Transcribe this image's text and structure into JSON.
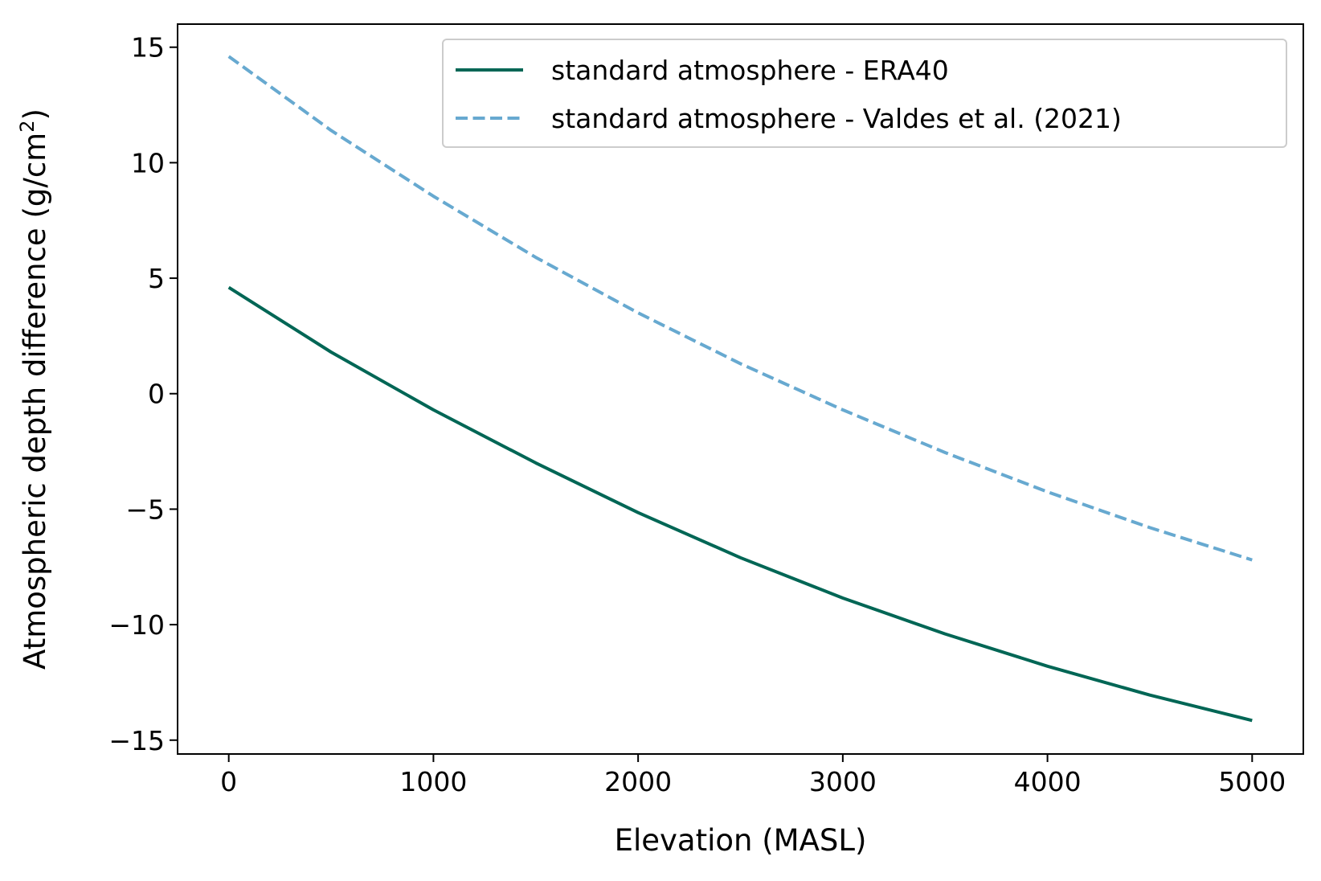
{
  "chart_data": {
    "type": "line",
    "xlabel": "Elevation (MASL)",
    "ylabel": {
      "prefix": "Atmospheric depth difference (g/cm",
      "superscript": "2",
      "suffix": ")"
    },
    "xlim": [
      -250,
      5250
    ],
    "ylim": [
      -15.6,
      16.0
    ],
    "x_ticks": [
      {
        "value": 0,
        "label": "0"
      },
      {
        "value": 1000,
        "label": "1000"
      },
      {
        "value": 2000,
        "label": "2000"
      },
      {
        "value": 3000,
        "label": "3000"
      },
      {
        "value": 4000,
        "label": "4000"
      },
      {
        "value": 5000,
        "label": "5000"
      }
    ],
    "y_ticks": [
      {
        "value": 15,
        "label": "15"
      },
      {
        "value": 10,
        "label": "10"
      },
      {
        "value": 5,
        "label": "5"
      },
      {
        "value": 0,
        "label": "0"
      },
      {
        "value": -5,
        "label": "−5"
      },
      {
        "value": -10,
        "label": "−10"
      },
      {
        "value": -15,
        "label": "−15"
      }
    ],
    "grid": false,
    "legend_position": "upper-right",
    "series": [
      {
        "name": "standard atmosphere - ERA40",
        "color": "#006655",
        "line_style": "solid",
        "x": [
          0,
          500,
          1000,
          1500,
          2000,
          2500,
          3000,
          3500,
          4000,
          4500,
          5000
        ],
        "y": [
          4.6,
          1.8,
          -0.7,
          -3.0,
          -5.15,
          -7.1,
          -8.85,
          -10.4,
          -11.8,
          -13.05,
          -14.15
        ]
      },
      {
        "name": "standard atmosphere - Valdes et al. (2021)",
        "color": "#67a9d0",
        "line_style": "dashed",
        "x": [
          0,
          500,
          1000,
          1500,
          2000,
          2500,
          3000,
          3500,
          4000,
          4500,
          5000
        ],
        "y": [
          14.6,
          11.4,
          8.55,
          5.9,
          3.5,
          1.3,
          -0.7,
          -2.55,
          -4.25,
          -5.8,
          -7.2
        ]
      }
    ]
  }
}
